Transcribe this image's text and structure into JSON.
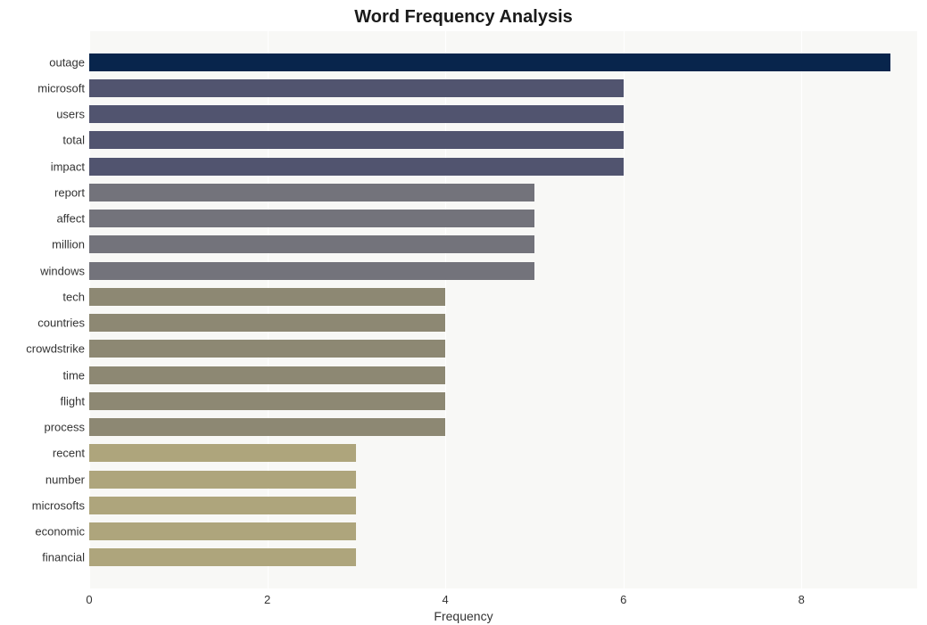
{
  "chart": {
    "type": "bar",
    "orientation": "horizontal",
    "title": "Word Frequency Analysis",
    "title_fontsize": 20,
    "title_fontweight": "bold",
    "title_color": "#1a1a1a",
    "xlabel": "Frequency",
    "xlabel_fontsize": 14,
    "xlabel_color": "#333333",
    "ylabel": "",
    "background_color": "#ffffff",
    "plot_background_color": "#f8f8f6",
    "grid_color": "#ffffff",
    "xlim": [
      0,
      9.3
    ],
    "xtick_step": 2,
    "xticks": [
      0,
      2,
      4,
      6,
      8
    ],
    "ylabel_fontsize": 13,
    "xtick_fontsize": 13,
    "tick_color": "#333333",
    "bar_height_ratio": 0.68,
    "categories": [
      "outage",
      "microsoft",
      "users",
      "total",
      "impact",
      "report",
      "affect",
      "million",
      "windows",
      "tech",
      "countries",
      "crowdstrike",
      "time",
      "flight",
      "process",
      "recent",
      "number",
      "microsofts",
      "economic",
      "financial"
    ],
    "values": [
      9,
      6,
      6,
      6,
      6,
      5,
      5,
      5,
      5,
      4,
      4,
      4,
      4,
      4,
      4,
      3,
      3,
      3,
      3,
      3
    ],
    "bar_colors": [
      "#08254c",
      "#51546f",
      "#51546f",
      "#51546f",
      "#51546f",
      "#73737b",
      "#73737b",
      "#73737b",
      "#73737b",
      "#8d8873",
      "#8d8873",
      "#8d8873",
      "#8d8873",
      "#8d8873",
      "#8d8873",
      "#aea57c",
      "#aea57c",
      "#aea57c",
      "#aea57c",
      "#aea57c"
    ]
  }
}
